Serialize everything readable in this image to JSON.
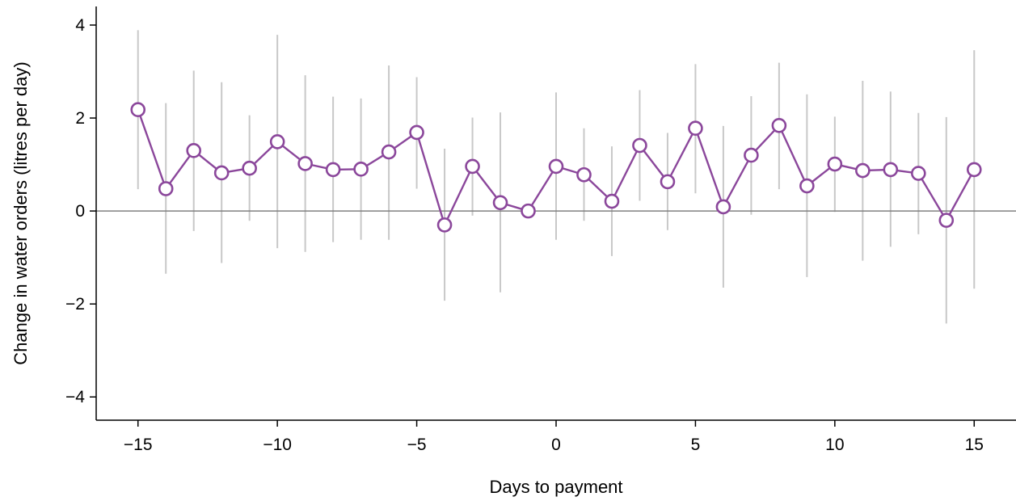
{
  "chart_data": {
    "type": "line",
    "title": "",
    "xlabel": "Days to payment",
    "ylabel": "Change in water orders (litres per day)",
    "xlim": [
      -16.5,
      16.5
    ],
    "ylim": [
      -4.5,
      4.4
    ],
    "x_ticks": [
      -15,
      -10,
      -5,
      0,
      5,
      10,
      15
    ],
    "x_tick_labels": [
      "−15",
      "−10",
      "−5",
      "0",
      "5",
      "10",
      "15"
    ],
    "y_ticks": [
      -4,
      -2,
      0,
      2,
      4
    ],
    "y_tick_labels": [
      "−4",
      "−2",
      "0",
      "2",
      "4"
    ],
    "reference_line_y": 0,
    "grid": false,
    "legend": "none",
    "colors": {
      "line": "#8b479b",
      "marker_fill": "#ffffff",
      "ci": "#c8c8c8",
      "zero_line": "#808080",
      "axis": "#000000"
    },
    "series": [
      {
        "x": [
          -15,
          -14,
          -13,
          -12,
          -11,
          -10,
          -9,
          -8,
          -7,
          -6,
          -5,
          -4,
          -3,
          -2,
          -1,
          0,
          1,
          2,
          3,
          4,
          5,
          6,
          7,
          8,
          9,
          10,
          11,
          12,
          13,
          14,
          15
        ],
        "y": [
          2.18,
          0.48,
          1.3,
          0.82,
          0.92,
          1.49,
          1.02,
          0.89,
          0.9,
          1.27,
          1.69,
          -0.3,
          0.96,
          0.18,
          0.0,
          0.96,
          0.78,
          0.21,
          1.41,
          0.63,
          1.78,
          0.09,
          1.2,
          1.84,
          0.54,
          1.01,
          0.87,
          0.89,
          0.81,
          -0.2,
          0.89
        ],
        "ci_low": [
          0.47,
          -1.35,
          -0.43,
          -1.12,
          -0.21,
          -0.8,
          -0.88,
          -0.67,
          -0.62,
          -0.62,
          0.48,
          -1.93,
          -0.1,
          -1.75,
          -0.02,
          -0.62,
          -0.21,
          -0.97,
          0.22,
          -0.41,
          0.38,
          -1.65,
          -0.08,
          0.47,
          -1.42,
          -0.02,
          -1.07,
          -0.77,
          -0.5,
          -2.42,
          -1.67
        ],
        "ci_high": [
          3.89,
          2.32,
          3.02,
          2.77,
          2.06,
          3.79,
          2.92,
          2.46,
          2.42,
          3.13,
          2.88,
          1.34,
          2.01,
          2.12,
          0.0,
          2.55,
          1.78,
          1.39,
          2.6,
          1.68,
          3.16,
          1.83,
          2.47,
          3.19,
          2.51,
          2.03,
          2.8,
          2.57,
          2.11,
          2.02,
          3.46
        ]
      }
    ]
  }
}
